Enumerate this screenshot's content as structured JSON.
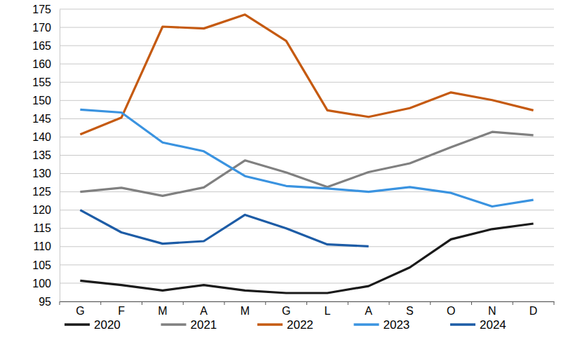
{
  "chart_data": {
    "type": "line",
    "categories": [
      "G",
      "F",
      "M",
      "A",
      "M",
      "G",
      "L",
      "A",
      "S",
      "O",
      "N",
      "D"
    ],
    "series": [
      {
        "name": "2020",
        "color": "#1a1a1a",
        "values": [
          100.7,
          99.5,
          98,
          99.5,
          98,
          97.3,
          97.3,
          99.2,
          104.3,
          112,
          114.8,
          116.3
        ]
      },
      {
        "name": "2021",
        "color": "#808080",
        "values": [
          125,
          126.1,
          123.9,
          126.2,
          133.6,
          130.3,
          126.3,
          130.4,
          132.8,
          137.2,
          141.4,
          140.5
        ]
      },
      {
        "name": "2022",
        "color": "#c55a11",
        "values": [
          140.7,
          145.3,
          170.2,
          169.7,
          173.5,
          166.3,
          147.3,
          145.5,
          147.9,
          152.2,
          150.1,
          147.3
        ]
      },
      {
        "name": "2023",
        "color": "#3a93e0",
        "values": [
          147.5,
          146.7,
          138.5,
          136.1,
          129.3,
          126.6,
          125.9,
          125,
          126.3,
          124.7,
          121,
          122.8
        ]
      },
      {
        "name": "2024",
        "color": "#1d5ca6",
        "values": [
          120,
          113.9,
          110.8,
          111.5,
          118.7,
          115,
          110.6,
          110.1,
          null,
          null,
          null,
          null
        ]
      }
    ],
    "ylim": [
      95,
      175
    ],
    "yticks": [
      95,
      100,
      105,
      110,
      115,
      120,
      125,
      130,
      135,
      140,
      145,
      150,
      155,
      160,
      165,
      170,
      175
    ],
    "grid": true,
    "legend": "bottom"
  }
}
